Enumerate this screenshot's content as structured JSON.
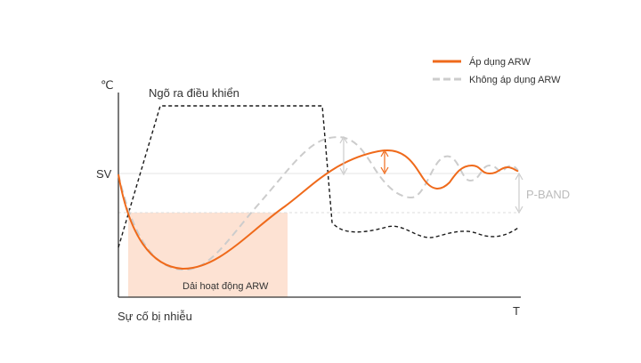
{
  "labels": {
    "y_unit": "℃",
    "sv": "SV",
    "x_unit": "T",
    "disturbance": "Sự cố bị nhiễu",
    "control_output": "Ngõ ra điều khiển",
    "arw_band": "Dải hoạt động ARW",
    "p_band": "P-BAND"
  },
  "legend": {
    "with_arw": "Áp dụng ARW",
    "without_arw": "Không áp dụng ARW"
  },
  "colors": {
    "with_arw": "#ef6a1b",
    "without_arw": "#cccccc",
    "control_output": "#1a1a1a",
    "arw_band_fill": "#fde2d3",
    "axis": "#333333",
    "guide": "#e6e6e6"
  }
}
